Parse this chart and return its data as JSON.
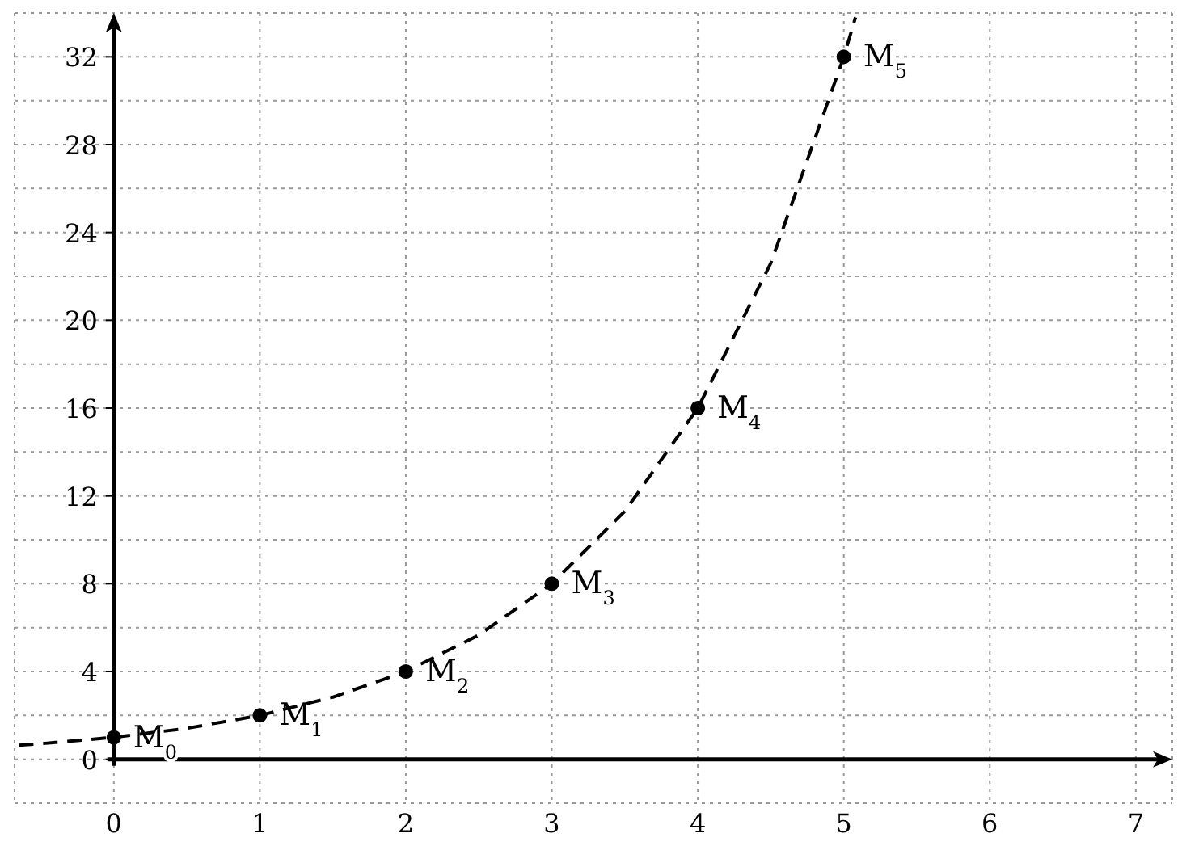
{
  "chart_data": {
    "type": "line",
    "xlim": [
      -0.68,
      7.25
    ],
    "xticks": [
      0,
      1,
      2,
      3,
      4,
      5,
      6,
      7
    ],
    "ylim": [
      -2,
      34
    ],
    "yticks": [
      {
        "value": -2,
        "label": null
      },
      0,
      {
        "value": 2,
        "label": null
      },
      4,
      {
        "value": 6,
        "label": null
      },
      8,
      {
        "value": 10,
        "label": null
      },
      12,
      {
        "value": 14,
        "label": null
      },
      16,
      {
        "value": 18,
        "label": null
      },
      20,
      {
        "value": 22,
        "label": null
      },
      24,
      {
        "value": 26,
        "label": null
      },
      28,
      {
        "value": 30,
        "label": null
      },
      32
    ],
    "grid": true,
    "series": [
      {
        "color": "#000000",
        "line_style": "dashed",
        "marker": "none",
        "x": [
          -0.65,
          -0.5,
          0,
          0.5,
          1,
          1.5,
          2,
          2.5,
          3,
          3.5,
          4,
          4.5,
          5,
          5.08
        ],
        "values": [
          0.64,
          0.71,
          1,
          1.41,
          2,
          2.83,
          4,
          5.66,
          8,
          11.3,
          16,
          22.6,
          32,
          33.8
        ]
      },
      {
        "type": "scatter",
        "color": "#000000",
        "marker": "circle",
        "x": [
          0,
          1,
          2,
          3,
          4,
          5
        ],
        "values": [
          1,
          2,
          4,
          8,
          16,
          32
        ]
      }
    ],
    "annotations": [
      {
        "text": "M$_{0}$",
        "x": 0,
        "y": 1
      },
      {
        "text": "M$_{1}$",
        "x": 1,
        "y": 2
      },
      {
        "text": "M$_{2}$",
        "x": 2,
        "y": 4
      },
      {
        "text": "M$_{3}$",
        "x": 3,
        "y": 8
      },
      {
        "text": "M$_{4}$",
        "x": 4,
        "y": 16
      },
      {
        "text": "M$_{5}$",
        "x": 5,
        "y": 32
      }
    ]
  }
}
